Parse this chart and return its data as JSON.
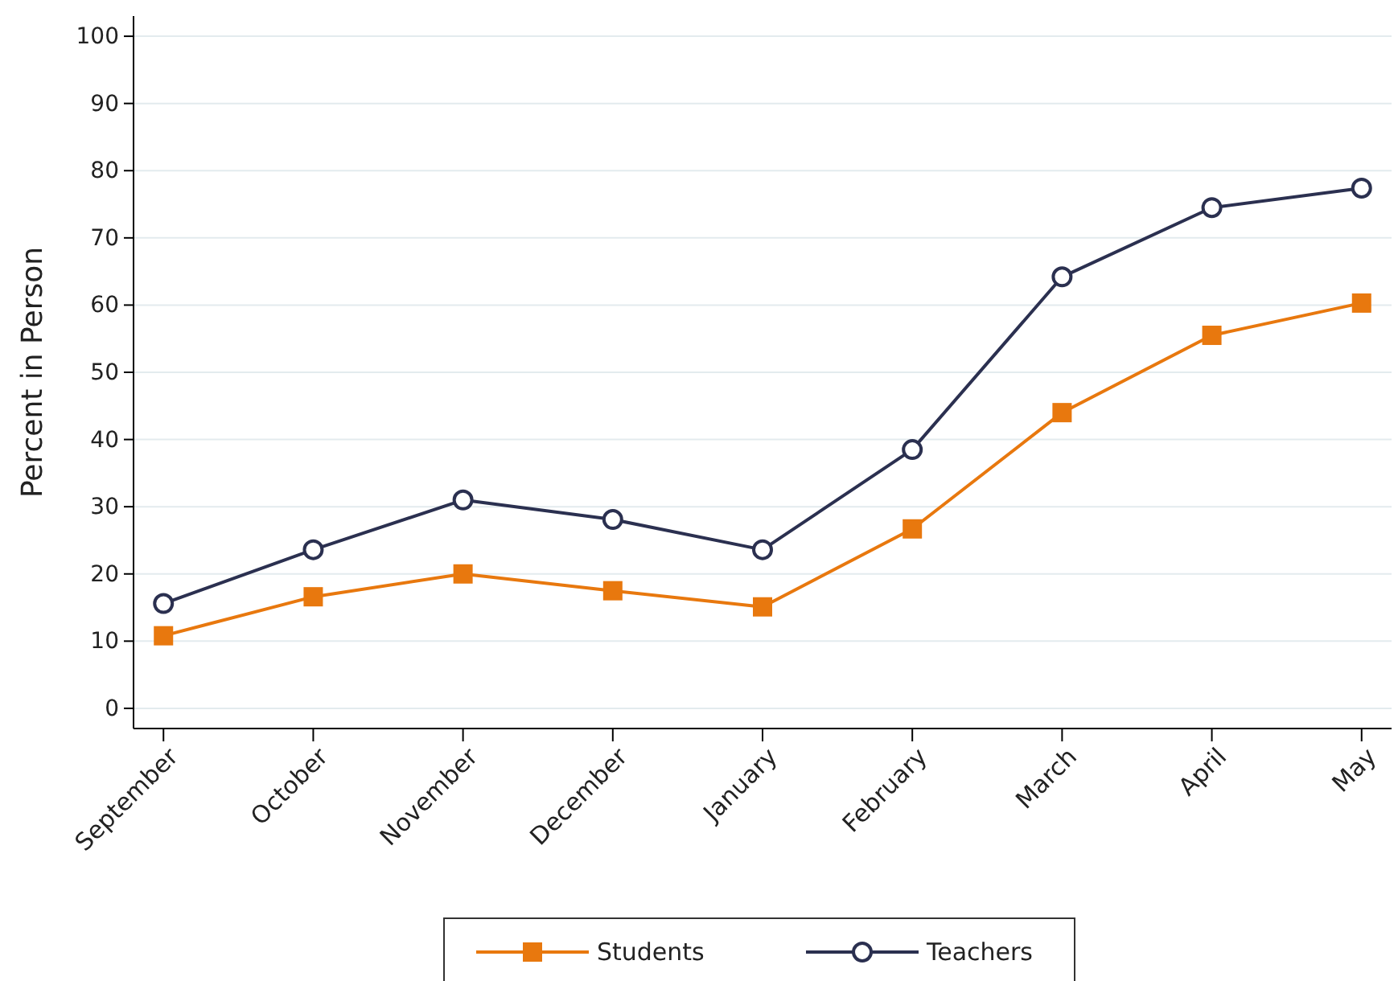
{
  "chart_data": {
    "type": "line",
    "ylabel": "Percent in Person",
    "categories": [
      "September",
      "October",
      "November",
      "December",
      "January",
      "February",
      "March",
      "April",
      "May"
    ],
    "series": [
      {
        "name": "Students",
        "color": "#e8780e",
        "marker": "square",
        "values": [
          10.8,
          16.6,
          20.0,
          17.5,
          15.1,
          26.7,
          44.0,
          55.5,
          60.3
        ]
      },
      {
        "name": "Teachers",
        "color": "#2b3050",
        "marker": "circle",
        "values": [
          15.6,
          23.6,
          31.0,
          28.1,
          23.6,
          38.5,
          64.2,
          74.5,
          77.4
        ]
      }
    ],
    "ylim": [
      -3,
      103
    ],
    "yticks": [
      0,
      10,
      20,
      30,
      40,
      50,
      60,
      70,
      80,
      90,
      100
    ],
    "grid": "y",
    "legend": "bottom",
    "line_style": "solid"
  }
}
